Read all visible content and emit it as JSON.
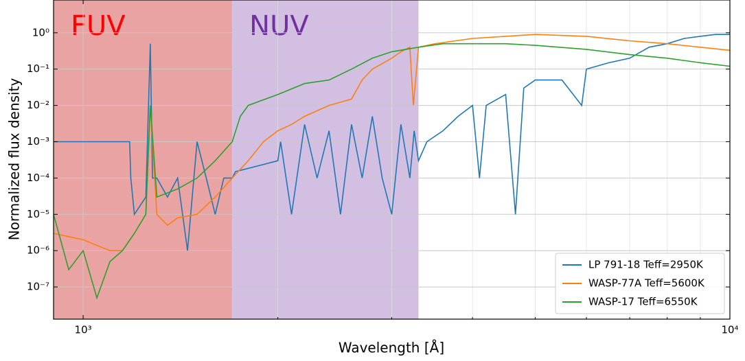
{
  "chart_data": {
    "type": "line",
    "xlabel": "Wavelength [Å]",
    "ylabel": "Normalized flux density",
    "xscale": "log",
    "yscale": "log",
    "xlim": [
      900,
      10000
    ],
    "ylim": [
      1.3e-08,
      8
    ],
    "xticks": [
      {
        "value": 1000,
        "label": "10³"
      },
      {
        "value": 10000,
        "label": "10⁴"
      }
    ],
    "xticks_minor": [
      900,
      2000,
      3000,
      4000,
      5000,
      6000,
      7000,
      8000,
      9000
    ],
    "yticks": [
      {
        "value": 1e-07,
        "label": "10⁻⁷"
      },
      {
        "value": 1e-06,
        "label": "10⁻⁶"
      },
      {
        "value": 1e-05,
        "label": "10⁻⁵"
      },
      {
        "value": 0.0001,
        "label": "10⁻⁴"
      },
      {
        "value": 0.001,
        "label": "10⁻³"
      },
      {
        "value": 0.01,
        "label": "10⁻²"
      },
      {
        "value": 0.1,
        "label": "10⁻¹"
      },
      {
        "value": 1,
        "label": "10⁰"
      }
    ],
    "grid": true,
    "legend": "lower right",
    "regions": [
      {
        "label": "FUV",
        "start": 900,
        "end": 1700,
        "color": "#e9a3a3",
        "label_color": "#ff0000"
      },
      {
        "label": "NUV",
        "start": 1700,
        "end": 3300,
        "color": "#d2bfe2",
        "label_color": "#7030a0"
      }
    ],
    "series": [
      {
        "name": "LP 791-18  Teff=2950K",
        "color": "#1f77b4",
        "x": [
          900,
          1180,
          1185,
          1200,
          1250,
          1270,
          1280,
          1300,
          1350,
          1400,
          1450,
          1500,
          1550,
          1600,
          1650,
          1700,
          1720,
          2000,
          2020,
          2100,
          2200,
          2300,
          2400,
          2500,
          2600,
          2700,
          2800,
          2900,
          3000,
          3100,
          3200,
          3250,
          3300,
          3400,
          3600,
          3800,
          4000,
          4100,
          4200,
          4500,
          4660,
          4800,
          5000,
          5500,
          5900,
          6000,
          6500,
          7000,
          7500,
          8000,
          8500,
          9000,
          9500,
          10000
        ],
        "values": [
          0.001,
          0.001,
          0.0001,
          1e-05,
          3e-05,
          0.5,
          0.0001,
          0.0001,
          3e-05,
          0.0001,
          1e-06,
          0.001,
          0.0001,
          1e-05,
          0.0001,
          0.0001,
          0.00015,
          0.0003,
          0.001,
          1e-05,
          0.003,
          0.0001,
          0.002,
          1e-05,
          0.003,
          0.0001,
          0.005,
          0.0001,
          1e-05,
          0.003,
          0.0001,
          0.002,
          0.0003,
          0.001,
          0.002,
          0.005,
          0.01,
          0.0001,
          0.01,
          0.02,
          1e-05,
          0.03,
          0.05,
          0.05,
          0.01,
          0.1,
          0.15,
          0.2,
          0.4,
          0.5,
          0.7,
          0.8,
          0.9,
          0.9
        ]
      },
      {
        "name": "WASP-77A  Teff=5600K",
        "color": "#ff7f0e",
        "x": [
          900,
          1000,
          1100,
          1150,
          1200,
          1250,
          1270,
          1300,
          1350,
          1400,
          1500,
          1600,
          1700,
          1800,
          1900,
          2000,
          2100,
          2200,
          2400,
          2600,
          2700,
          2800,
          3000,
          3100,
          3200,
          3240,
          3300,
          3500,
          4000,
          4500,
          5000,
          6000,
          7000,
          8000,
          9000,
          10000
        ],
        "values": [
          3e-06,
          2e-06,
          1e-06,
          1e-06,
          3e-06,
          1e-05,
          0.01,
          1e-05,
          5e-06,
          8e-06,
          1e-05,
          3e-05,
          0.0001,
          0.0003,
          0.001,
          0.002,
          0.003,
          0.005,
          0.01,
          0.015,
          0.05,
          0.1,
          0.2,
          0.3,
          0.4,
          0.01,
          0.4,
          0.5,
          0.7,
          0.8,
          0.9,
          0.8,
          0.6,
          0.5,
          0.4,
          0.33
        ]
      },
      {
        "name": "WASP-17  Teff=6550K",
        "color": "#2ca02c",
        "x": [
          900,
          950,
          1000,
          1050,
          1100,
          1150,
          1200,
          1250,
          1270,
          1300,
          1400,
          1500,
          1600,
          1700,
          1750,
          1800,
          2000,
          2200,
          2400,
          2600,
          2800,
          3000,
          3300,
          3600,
          4000,
          4500,
          5000,
          6000,
          7000,
          8000,
          9000,
          10000
        ],
        "values": [
          1e-05,
          3e-07,
          1e-06,
          5e-08,
          5e-07,
          1e-06,
          3e-06,
          1e-05,
          0.01,
          3e-05,
          5e-05,
          0.0001,
          0.0003,
          0.001,
          0.005,
          0.01,
          0.02,
          0.04,
          0.05,
          0.1,
          0.2,
          0.3,
          0.4,
          0.5,
          0.5,
          0.5,
          0.45,
          0.35,
          0.25,
          0.2,
          0.15,
          0.12
        ]
      }
    ]
  }
}
